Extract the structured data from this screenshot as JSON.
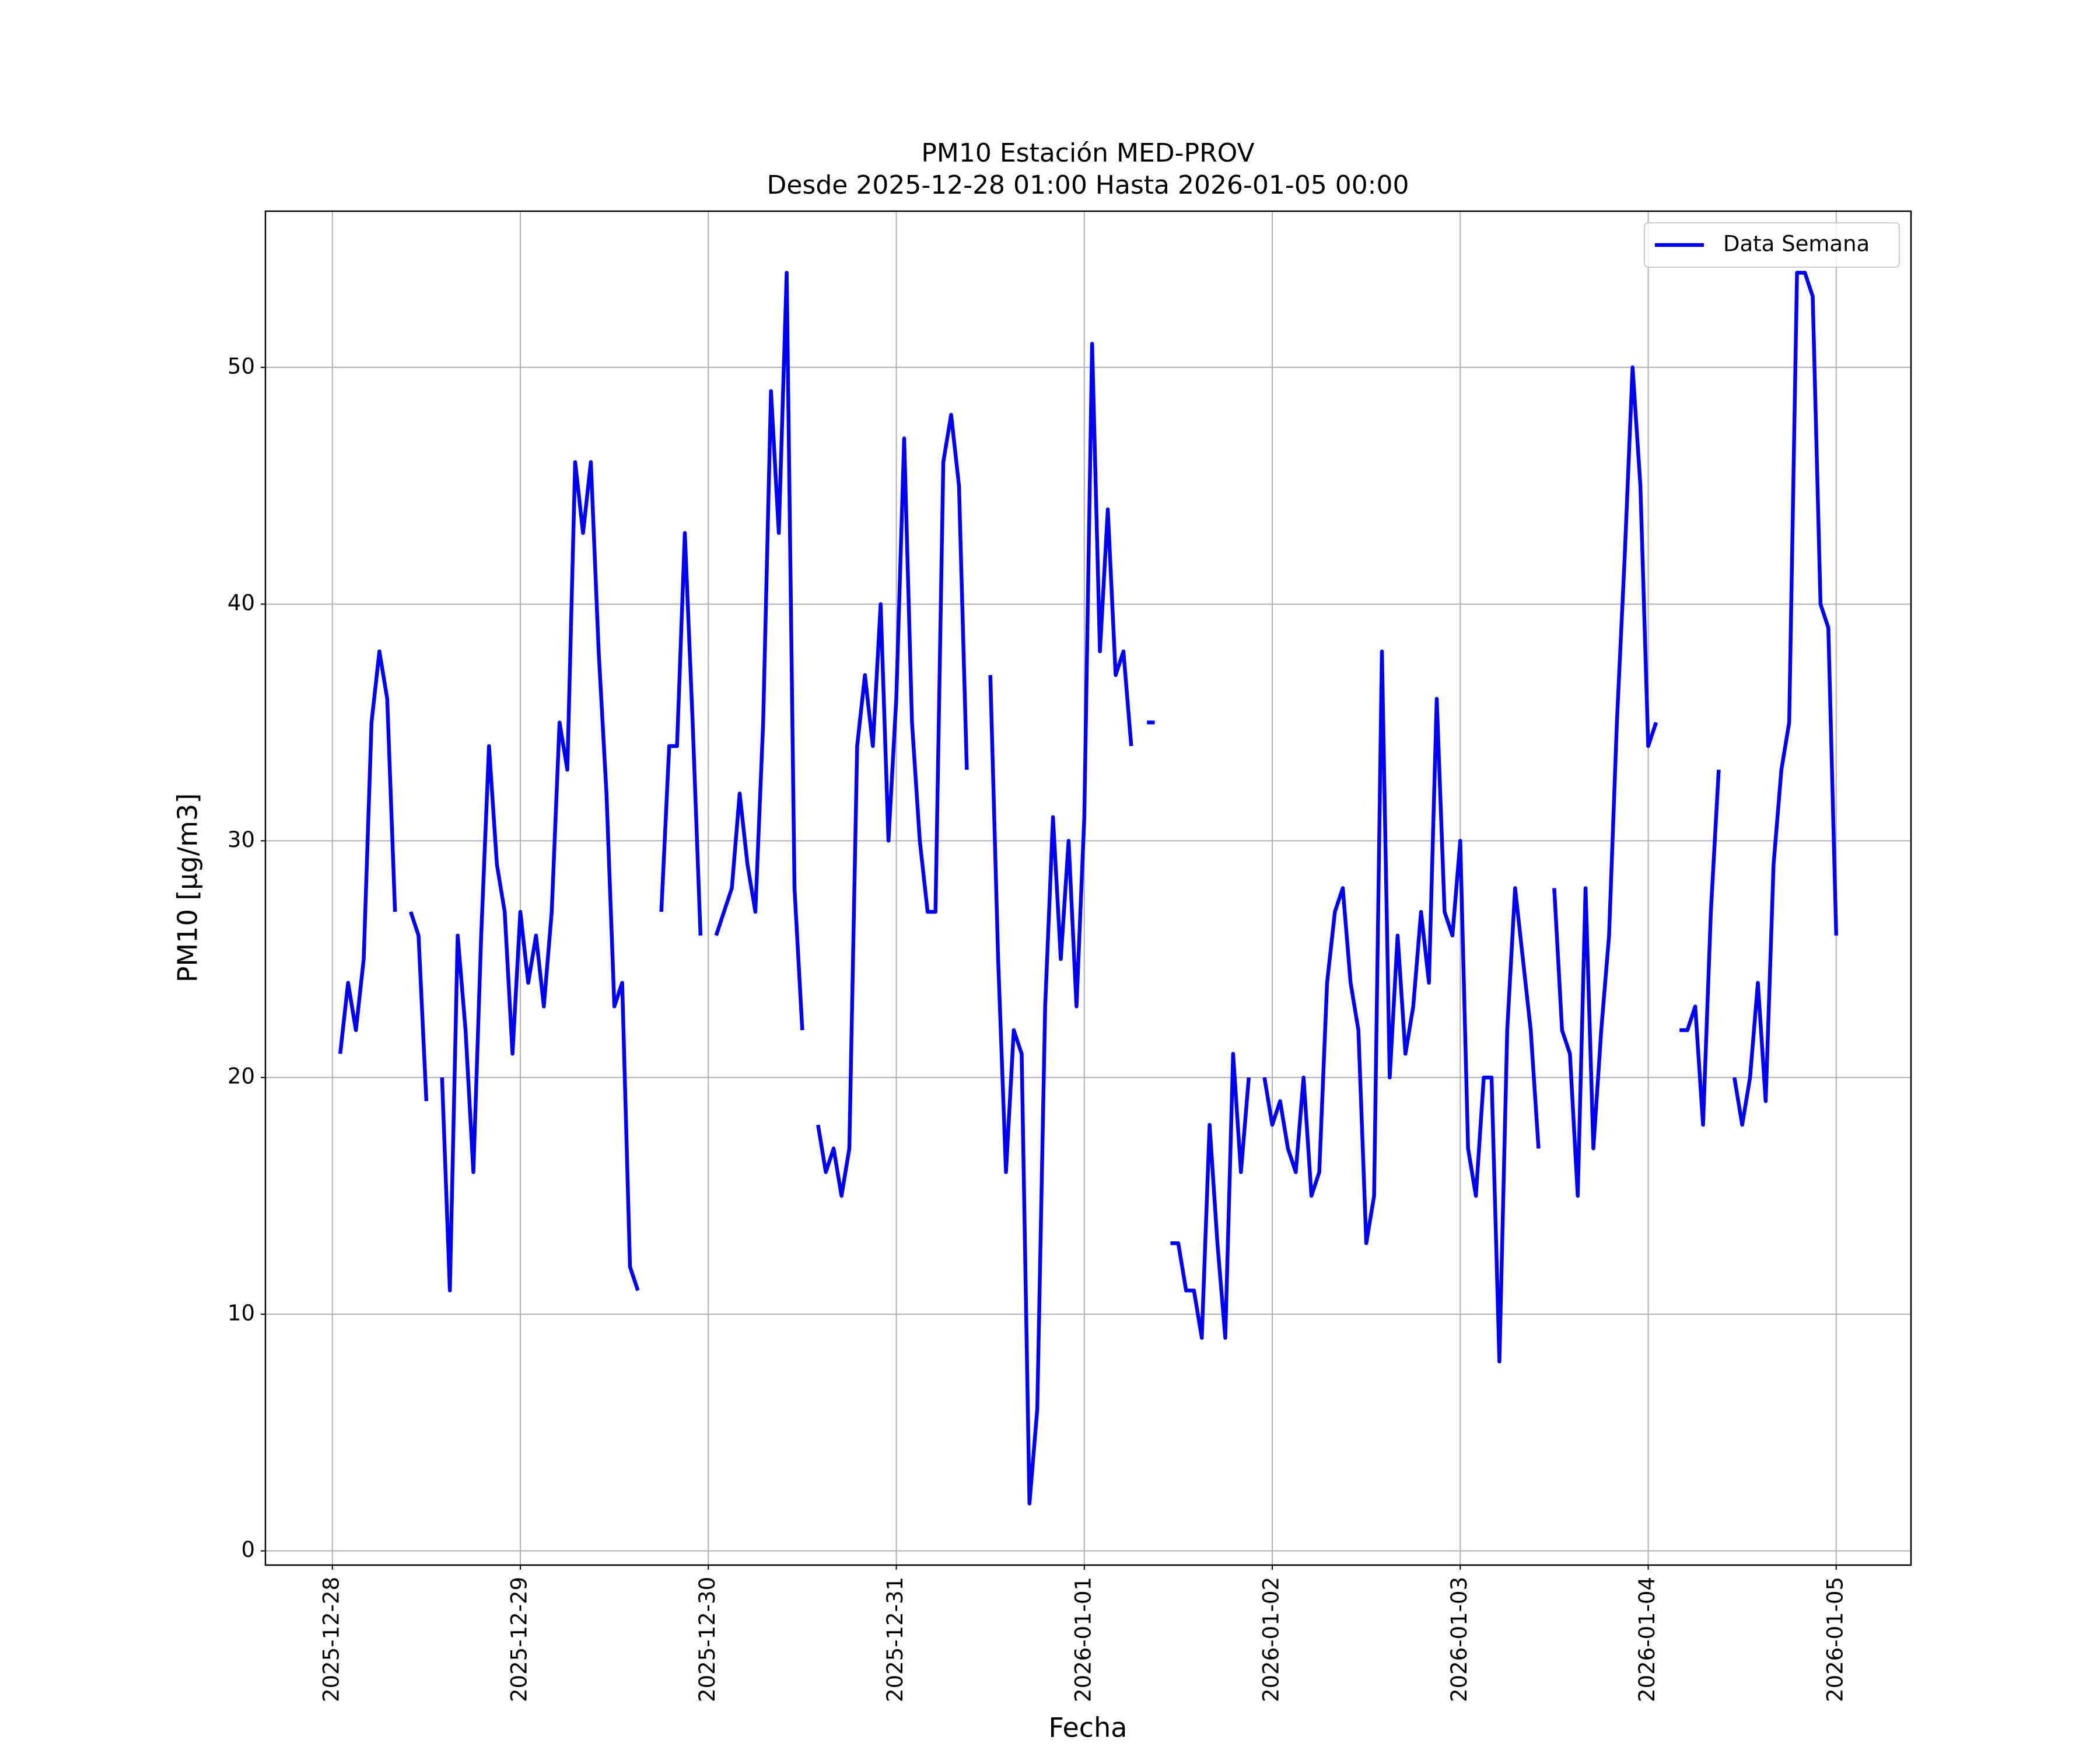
{
  "chart_data": {
    "type": "line",
    "title": "PM10 Estación MED-PROV",
    "subtitle": "Desde 2025-12-28 01:00 Hasta 2026-01-05 00:00",
    "x_label": "Fecha",
    "y_label": "PM10 [μg/m3]",
    "x": [
      "2025-12-28 01:00",
      "2025-12-28 02:00",
      "2025-12-28 03:00",
      "2025-12-28 04:00",
      "2025-12-28 05:00",
      "2025-12-28 06:00",
      "2025-12-28 07:00",
      "2025-12-28 08:00",
      "2025-12-28 09:00",
      "2025-12-28 10:00",
      "2025-12-28 11:00",
      "2025-12-28 12:00",
      "2025-12-28 13:00",
      "2025-12-28 14:00",
      "2025-12-28 15:00",
      "2025-12-28 16:00",
      "2025-12-28 17:00",
      "2025-12-28 18:00",
      "2025-12-28 19:00",
      "2025-12-28 20:00",
      "2025-12-28 21:00",
      "2025-12-28 22:00",
      "2025-12-28 23:00",
      "2025-12-29 00:00",
      "2025-12-29 01:00",
      "2025-12-29 02:00",
      "2025-12-29 03:00",
      "2025-12-29 04:00",
      "2025-12-29 05:00",
      "2025-12-29 06:00",
      "2025-12-29 07:00",
      "2025-12-29 08:00",
      "2025-12-29 09:00",
      "2025-12-29 10:00",
      "2025-12-29 11:00",
      "2025-12-29 12:00",
      "2025-12-29 13:00",
      "2025-12-29 14:00",
      "2025-12-29 15:00",
      "2025-12-29 16:00",
      "2025-12-29 17:00",
      "2025-12-29 18:00",
      "2025-12-29 19:00",
      "2025-12-29 20:00",
      "2025-12-29 21:00",
      "2025-12-29 22:00",
      "2025-12-29 23:00",
      "2025-12-30 00:00",
      "2025-12-30 01:00",
      "2025-12-30 02:00",
      "2025-12-30 03:00",
      "2025-12-30 04:00",
      "2025-12-30 05:00",
      "2025-12-30 06:00",
      "2025-12-30 07:00",
      "2025-12-30 08:00",
      "2025-12-30 09:00",
      "2025-12-30 10:00",
      "2025-12-30 11:00",
      "2025-12-30 12:00",
      "2025-12-30 13:00",
      "2025-12-30 14:00",
      "2025-12-30 15:00",
      "2025-12-30 16:00",
      "2025-12-30 17:00",
      "2025-12-30 18:00",
      "2025-12-30 19:00",
      "2025-12-30 20:00",
      "2025-12-30 21:00",
      "2025-12-30 22:00",
      "2025-12-30 23:00",
      "2025-12-31 00:00",
      "2025-12-31 01:00",
      "2025-12-31 02:00",
      "2025-12-31 03:00",
      "2025-12-31 04:00",
      "2025-12-31 05:00",
      "2025-12-31 06:00",
      "2025-12-31 07:00",
      "2025-12-31 08:00",
      "2025-12-31 09:00",
      "2025-12-31 10:00",
      "2025-12-31 11:00",
      "2025-12-31 12:00",
      "2025-12-31 13:00",
      "2025-12-31 14:00",
      "2025-12-31 15:00",
      "2025-12-31 16:00",
      "2025-12-31 17:00",
      "2025-12-31 18:00",
      "2025-12-31 19:00",
      "2025-12-31 20:00",
      "2025-12-31 21:00",
      "2025-12-31 22:00",
      "2025-12-31 23:00",
      "2026-01-01 00:00",
      "2026-01-01 01:00",
      "2026-01-01 02:00",
      "2026-01-01 03:00",
      "2026-01-01 04:00",
      "2026-01-01 05:00",
      "2026-01-01 06:00",
      "2026-01-01 07:00",
      "2026-01-01 08:00",
      "2026-01-01 09:00",
      "2026-01-01 10:00",
      "2026-01-01 11:00",
      "2026-01-01 12:00",
      "2026-01-01 13:00",
      "2026-01-01 14:00",
      "2026-01-01 15:00",
      "2026-01-01 16:00",
      "2026-01-01 17:00",
      "2026-01-01 18:00",
      "2026-01-01 19:00",
      "2026-01-01 20:00",
      "2026-01-01 21:00",
      "2026-01-01 22:00",
      "2026-01-01 23:00",
      "2026-01-02 00:00",
      "2026-01-02 01:00",
      "2026-01-02 02:00",
      "2026-01-02 03:00",
      "2026-01-02 04:00",
      "2026-01-02 05:00",
      "2026-01-02 06:00",
      "2026-01-02 07:00",
      "2026-01-02 08:00",
      "2026-01-02 09:00",
      "2026-01-02 10:00",
      "2026-01-02 11:00",
      "2026-01-02 12:00",
      "2026-01-02 13:00",
      "2026-01-02 14:00",
      "2026-01-02 15:00",
      "2026-01-02 16:00",
      "2026-01-02 17:00",
      "2026-01-02 18:00",
      "2026-01-02 19:00",
      "2026-01-02 20:00",
      "2026-01-02 21:00",
      "2026-01-02 22:00",
      "2026-01-02 23:00",
      "2026-01-03 00:00",
      "2026-01-03 01:00",
      "2026-01-03 02:00",
      "2026-01-03 03:00",
      "2026-01-03 04:00",
      "2026-01-03 05:00",
      "2026-01-03 06:00",
      "2026-01-03 07:00",
      "2026-01-03 08:00",
      "2026-01-03 09:00",
      "2026-01-03 10:00",
      "2026-01-03 11:00",
      "2026-01-03 12:00",
      "2026-01-03 13:00",
      "2026-01-03 14:00",
      "2026-01-03 15:00",
      "2026-01-03 16:00",
      "2026-01-03 17:00",
      "2026-01-03 18:00",
      "2026-01-03 19:00",
      "2026-01-03 20:00",
      "2026-01-03 21:00",
      "2026-01-03 22:00",
      "2026-01-03 23:00",
      "2026-01-04 00:00",
      "2026-01-04 01:00",
      "2026-01-04 02:00",
      "2026-01-04 03:00",
      "2026-01-04 04:00",
      "2026-01-04 05:00",
      "2026-01-04 06:00",
      "2026-01-04 07:00",
      "2026-01-04 08:00",
      "2026-01-04 09:00",
      "2026-01-04 10:00",
      "2026-01-04 11:00",
      "2026-01-04 12:00",
      "2026-01-04 13:00",
      "2026-01-04 14:00",
      "2026-01-04 15:00",
      "2026-01-04 16:00",
      "2026-01-04 17:00",
      "2026-01-04 18:00",
      "2026-01-04 19:00",
      "2026-01-04 20:00",
      "2026-01-04 21:00",
      "2026-01-04 22:00",
      "2026-01-04 23:00",
      "2026-01-05 00:00"
    ],
    "series": [
      {
        "name": "Data Semana",
        "color": "#0000ff",
        "values": [
          21,
          24,
          22,
          25,
          35,
          38,
          36,
          27,
          null,
          27,
          26,
          19,
          null,
          20,
          11,
          26,
          22,
          16,
          26,
          34,
          29,
          27,
          21,
          27,
          24,
          26,
          23,
          27,
          35,
          33,
          46,
          43,
          46,
          38,
          32,
          23,
          24,
          12,
          11,
          null,
          null,
          27,
          34,
          34,
          43,
          35,
          26,
          null,
          26,
          27,
          28,
          32,
          29,
          27,
          35,
          49,
          43,
          54,
          28,
          22,
          null,
          18,
          16,
          17,
          15,
          17,
          34,
          37,
          34,
          40,
          30,
          36,
          47,
          35,
          30,
          27,
          27,
          46,
          48,
          45,
          33,
          null,
          null,
          37,
          25,
          16,
          22,
          21,
          2,
          6,
          23,
          31,
          25,
          30,
          23,
          31,
          51,
          38,
          44,
          37,
          38,
          34,
          null,
          35,
          35,
          null,
          13,
          13,
          11,
          11,
          9,
          18,
          13,
          9,
          21,
          16,
          20,
          null,
          20,
          18,
          19,
          17,
          16,
          20,
          15,
          16,
          24,
          27,
          28,
          24,
          22,
          13,
          15,
          38,
          20,
          26,
          21,
          23,
          27,
          24,
          36,
          27,
          26,
          30,
          17,
          15,
          20,
          20,
          8,
          22,
          28,
          25,
          22,
          17,
          null,
          28,
          22,
          21,
          15,
          28,
          17,
          22,
          26,
          35,
          42,
          50,
          45,
          34,
          35,
          null,
          null,
          22,
          22,
          23,
          18,
          27,
          33,
          null,
          20,
          18,
          20,
          24,
          19,
          29,
          33,
          35,
          54,
          54,
          53,
          40,
          39,
          26
        ]
      }
    ],
    "xlim": [
      "2025-12-27 15:27",
      "2026-01-05 09:33"
    ],
    "ylim": [
      -0.6,
      56.6
    ],
    "xticks": [
      "2025-12-28",
      "2025-12-29",
      "2025-12-30",
      "2025-12-31",
      "2026-01-01",
      "2026-01-02",
      "2026-01-03",
      "2026-01-04",
      "2026-01-05"
    ],
    "yticks": [
      0,
      10,
      20,
      30,
      40,
      50
    ],
    "grid": true,
    "legend": "upper right"
  }
}
